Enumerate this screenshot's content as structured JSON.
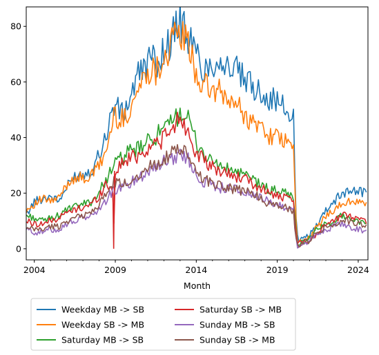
{
  "chart_data": {
    "type": "line",
    "title": "",
    "xlabel": "Month",
    "ylabel": "",
    "xlim": [
      2003.5,
      2024.6
    ],
    "ylim": [
      -4,
      87
    ],
    "x_ticks": [
      2004,
      2009,
      2014,
      2019,
      2024
    ],
    "y_ticks": [
      0,
      20,
      40,
      60,
      80
    ],
    "grid": false,
    "legend_position": "bottom-outside",
    "series": [
      {
        "name": "Weekday MB -> SB",
        "color": "#1f77b4",
        "x": [
          2003.5,
          2004.0,
          2004.5,
          2005.0,
          2005.5,
          2006.0,
          2006.5,
          2007.0,
          2007.5,
          2008.0,
          2008.5,
          2008.9,
          2009.5,
          2010.0,
          2010.5,
          2011.0,
          2011.5,
          2012.0,
          2012.5,
          2013.0,
          2013.5,
          2014.0,
          2014.5,
          2015.0,
          2015.5,
          2016.0,
          2016.5,
          2017.0,
          2017.5,
          2018.0,
          2018.5,
          2019.0,
          2019.5,
          2020.0,
          2020.2,
          2020.5,
          2021.0,
          2021.5,
          2022.0,
          2022.5,
          2023.0,
          2023.5,
          2024.0,
          2024.5
        ],
        "y": [
          12,
          17,
          18,
          19,
          17,
          22,
          26,
          27,
          28,
          34,
          42,
          52,
          48,
          56,
          63,
          68,
          67,
          71,
          76,
          82,
          76,
          70,
          64,
          67,
          68,
          65,
          64,
          60,
          58,
          57,
          54,
          53,
          50,
          47,
          4,
          3,
          5,
          9,
          14,
          17,
          20,
          21,
          21,
          20
        ]
      },
      {
        "name": "Weekday SB -> MB",
        "color": "#ff7f0e",
        "x": [
          2003.5,
          2004.0,
          2004.5,
          2005.0,
          2005.5,
          2006.0,
          2006.5,
          2007.0,
          2007.5,
          2008.0,
          2008.5,
          2008.9,
          2009.5,
          2010.0,
          2010.5,
          2011.0,
          2011.5,
          2012.0,
          2012.5,
          2013.0,
          2013.5,
          2014.0,
          2014.5,
          2015.0,
          2015.5,
          2016.0,
          2016.5,
          2017.0,
          2017.5,
          2018.0,
          2018.5,
          2019.0,
          2019.5,
          2020.0,
          2020.2,
          2020.5,
          2021.0,
          2021.5,
          2022.0,
          2022.5,
          2023.0,
          2023.5,
          2024.0,
          2024.5
        ],
        "y": [
          14,
          16,
          18,
          17,
          18,
          23,
          26,
          25,
          26,
          30,
          36,
          48,
          46,
          52,
          58,
          65,
          64,
          69,
          74,
          78,
          73,
          63,
          58,
          57,
          56,
          53,
          52,
          48,
          45,
          44,
          41,
          40,
          38,
          37,
          3,
          2,
          4,
          8,
          12,
          14,
          16,
          17,
          17,
          16
        ]
      },
      {
        "name": "Saturday MB -> SB",
        "color": "#2ca02c",
        "x": [
          2003.5,
          2004.0,
          2004.5,
          2005.0,
          2005.5,
          2006.0,
          2006.5,
          2007.0,
          2007.5,
          2008.0,
          2008.5,
          2008.9,
          2009.5,
          2010.0,
          2010.5,
          2011.0,
          2011.5,
          2012.0,
          2012.5,
          2013.0,
          2013.5,
          2014.0,
          2014.5,
          2015.0,
          2015.5,
          2016.0,
          2016.5,
          2017.0,
          2017.5,
          2018.0,
          2018.5,
          2019.0,
          2019.5,
          2020.0,
          2020.2,
          2020.5,
          2021.0,
          2021.5,
          2022.0,
          2022.5,
          2023.0,
          2023.5,
          2024.0,
          2024.5
        ],
        "y": [
          12,
          11,
          10,
          11,
          12,
          14,
          15,
          16,
          17,
          20,
          26,
          30,
          33,
          35,
          36,
          38,
          41,
          42,
          45,
          50,
          46,
          38,
          34,
          31,
          30,
          28,
          28,
          26,
          25,
          23,
          21,
          21,
          20,
          19,
          2,
          2,
          4,
          7,
          9,
          10,
          12,
          11,
          10,
          9
        ]
      },
      {
        "name": "Saturday SB -> MB",
        "color": "#d62728",
        "x": [
          2003.5,
          2004.0,
          2004.5,
          2005.0,
          2005.5,
          2006.0,
          2006.5,
          2007.0,
          2007.5,
          2008.0,
          2008.5,
          2008.85,
          2008.9,
          2008.95,
          2009.5,
          2010.0,
          2010.5,
          2011.0,
          2011.5,
          2012.0,
          2012.5,
          2013.0,
          2013.5,
          2014.0,
          2014.5,
          2015.0,
          2015.5,
          2016.0,
          2016.5,
          2017.0,
          2017.5,
          2018.0,
          2018.5,
          2019.0,
          2019.5,
          2020.0,
          2020.2,
          2020.5,
          2021.0,
          2021.5,
          2022.0,
          2022.5,
          2023.0,
          2023.5,
          2024.0,
          2024.5
        ],
        "y": [
          10,
          9,
          9,
          10,
          11,
          13,
          14,
          15,
          16,
          19,
          24,
          20,
          0,
          28,
          31,
          33,
          34,
          36,
          38,
          40,
          42,
          48,
          42,
          35,
          31,
          29,
          28,
          27,
          26,
          25,
          23,
          22,
          20,
          19,
          18,
          17,
          2,
          2,
          3,
          6,
          9,
          10,
          12,
          12,
          11,
          10
        ]
      },
      {
        "name": "Sunday MB -> SB",
        "color": "#9467bd",
        "x": [
          2003.5,
          2004.0,
          2004.5,
          2005.0,
          2005.5,
          2006.0,
          2006.5,
          2007.0,
          2007.5,
          2008.0,
          2008.5,
          2008.9,
          2009.5,
          2010.0,
          2010.5,
          2011.0,
          2011.5,
          2012.0,
          2012.5,
          2013.0,
          2013.5,
          2014.0,
          2014.5,
          2015.0,
          2015.5,
          2016.0,
          2016.5,
          2017.0,
          2017.5,
          2018.0,
          2018.5,
          2019.0,
          2019.5,
          2020.0,
          2020.2,
          2020.5,
          2021.0,
          2021.5,
          2022.0,
          2022.5,
          2023.0,
          2023.5,
          2024.0,
          2024.5
        ],
        "y": [
          7,
          6,
          6,
          7,
          7,
          9,
          10,
          11,
          12,
          14,
          18,
          21,
          22,
          24,
          26,
          28,
          30,
          31,
          33,
          34,
          32,
          27,
          24,
          23,
          22,
          22,
          21,
          20,
          19,
          18,
          17,
          16,
          15,
          14,
          1,
          1,
          3,
          5,
          7,
          8,
          9,
          8,
          7,
          6
        ]
      },
      {
        "name": "Sunday SB -> MB",
        "color": "#8c564b",
        "x": [
          2003.5,
          2004.0,
          2004.5,
          2005.0,
          2005.5,
          2006.0,
          2006.5,
          2007.0,
          2007.5,
          2008.0,
          2008.5,
          2008.9,
          2009.5,
          2010.0,
          2010.5,
          2011.0,
          2011.5,
          2012.0,
          2012.5,
          2013.0,
          2013.5,
          2014.0,
          2014.5,
          2015.0,
          2015.5,
          2016.0,
          2016.5,
          2017.0,
          2017.5,
          2018.0,
          2018.5,
          2019.0,
          2019.5,
          2020.0,
          2020.2,
          2020.5,
          2021.0,
          2021.5,
          2022.0,
          2022.5,
          2023.0,
          2023.5,
          2024.0,
          2024.5
        ],
        "y": [
          7,
          7,
          7,
          8,
          8,
          10,
          11,
          12,
          13,
          16,
          20,
          24,
          23,
          25,
          27,
          29,
          31,
          32,
          34,
          36,
          33,
          28,
          25,
          24,
          23,
          22,
          21,
          21,
          20,
          18,
          16,
          16,
          15,
          13,
          1,
          2,
          3,
          6,
          8,
          9,
          10,
          10,
          9,
          8
        ]
      }
    ]
  }
}
